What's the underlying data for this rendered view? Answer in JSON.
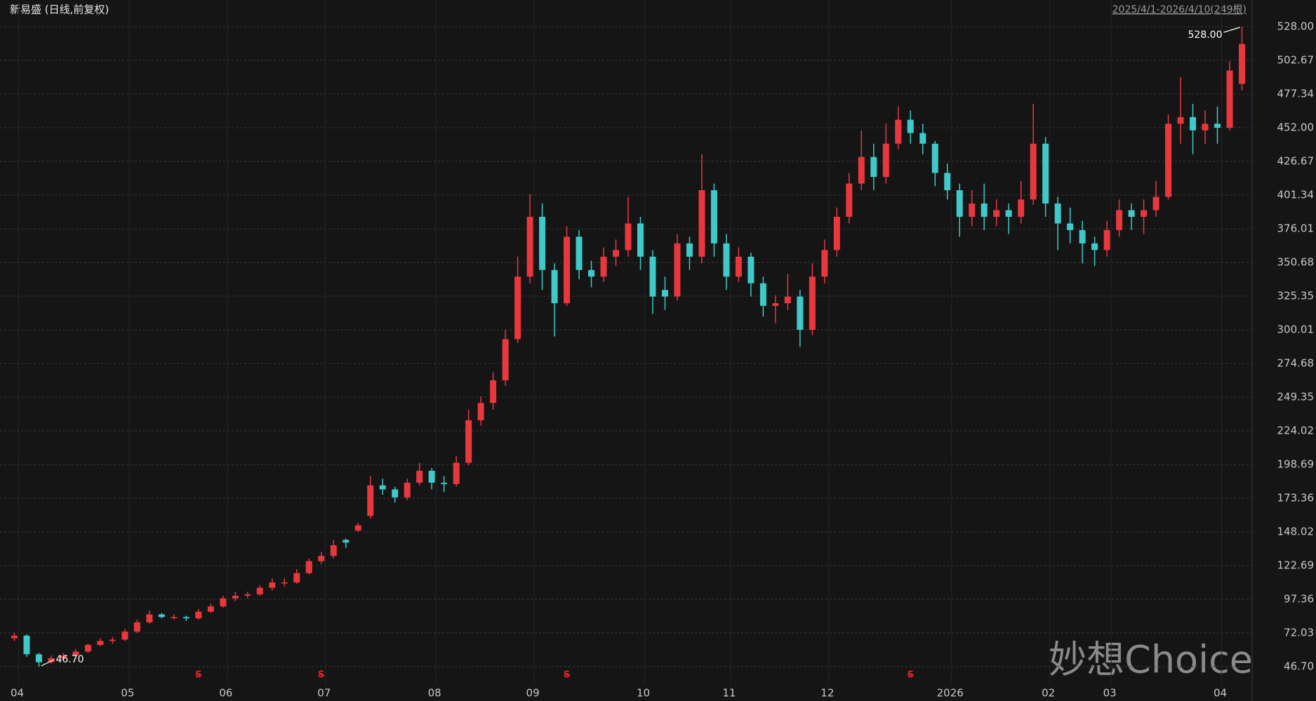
{
  "chart_data": {
    "type": "candlestick",
    "title": "新易盛 (日线,前复权)",
    "range_text": "2025/4/1-2026/4/10(249根)",
    "watermark": "妙想Choice",
    "high_label": "528.00",
    "low_label": "46.70",
    "up_color": "#e8383d",
    "down_color": "#3fc9c9",
    "grid": true,
    "open": [
      68,
      70,
      56,
      50,
      53,
      55,
      58,
      63,
      66,
      67,
      73,
      80,
      86,
      84,
      84,
      83,
      88,
      92,
      98,
      100,
      101,
      106,
      110,
      110,
      117,
      126,
      130,
      142,
      149,
      160,
      183,
      180,
      174,
      185,
      194,
      185,
      184,
      200,
      232,
      245,
      262,
      293,
      340,
      385,
      345,
      320,
      370,
      345,
      340,
      355,
      360,
      380,
      355,
      330,
      325,
      365,
      355,
      405,
      365,
      340,
      355,
      335,
      318,
      320,
      325,
      300,
      340,
      360,
      385,
      410,
      430,
      415,
      440,
      458,
      448,
      440,
      418,
      405,
      385,
      395,
      385,
      390,
      385,
      398,
      440,
      395,
      380,
      375,
      365,
      360,
      375,
      390,
      385,
      390,
      400,
      455,
      460,
      450,
      455,
      452,
      485
    ],
    "high": [
      72,
      71,
      57,
      55,
      57,
      60,
      64,
      68,
      69,
      75,
      82,
      89,
      87,
      86,
      85,
      90,
      94,
      100,
      103,
      103,
      108,
      113,
      113,
      120,
      128,
      133,
      142,
      143,
      155,
      190,
      188,
      182,
      188,
      200,
      196,
      190,
      205,
      240,
      250,
      268,
      300,
      355,
      402,
      395,
      350,
      378,
      375,
      352,
      362,
      368,
      400,
      385,
      360,
      340,
      372,
      370,
      432,
      410,
      372,
      362,
      358,
      340,
      326,
      342,
      330,
      350,
      368,
      392,
      418,
      450,
      440,
      455,
      468,
      465,
      455,
      442,
      425,
      410,
      405,
      410,
      398,
      395,
      412,
      470,
      445,
      400,
      392,
      382,
      370,
      382,
      398,
      395,
      398,
      412,
      462,
      490,
      470,
      465,
      468,
      502,
      528
    ],
    "low": [
      66,
      54,
      46.7,
      49,
      51,
      54,
      57,
      62,
      64,
      66,
      72,
      79,
      83,
      82,
      81,
      82,
      87,
      91,
      96,
      98,
      100,
      104,
      107,
      109,
      116,
      124,
      128,
      136,
      148,
      158,
      176,
      170,
      172,
      183,
      180,
      178,
      182,
      198,
      228,
      240,
      258,
      290,
      335,
      330,
      295,
      318,
      338,
      332,
      336,
      348,
      355,
      345,
      312,
      315,
      322,
      345,
      350,
      355,
      330,
      336,
      325,
      310,
      305,
      315,
      287,
      296,
      335,
      355,
      380,
      405,
      405,
      410,
      436,
      440,
      432,
      408,
      398,
      370,
      378,
      375,
      378,
      372,
      380,
      394,
      385,
      360,
      365,
      350,
      348,
      355,
      370,
      375,
      372,
      385,
      398,
      440,
      432,
      440,
      440,
      450,
      480
    ],
    "close": [
      70,
      56,
      50,
      53,
      55,
      58,
      63,
      66,
      67,
      73,
      80,
      86,
      84,
      84,
      83,
      88,
      92,
      98,
      100,
      101,
      106,
      110,
      110,
      117,
      126,
      130,
      138,
      140,
      153,
      183,
      180,
      174,
      185,
      194,
      185,
      184,
      200,
      232,
      245,
      262,
      293,
      340,
      385,
      345,
      320,
      370,
      345,
      340,
      355,
      360,
      380,
      355,
      325,
      325,
      365,
      355,
      405,
      365,
      340,
      355,
      335,
      318,
      320,
      325,
      300,
      340,
      360,
      385,
      410,
      430,
      415,
      440,
      458,
      448,
      440,
      418,
      405,
      385,
      395,
      385,
      390,
      385,
      398,
      440,
      395,
      380,
      375,
      365,
      360,
      375,
      390,
      385,
      390,
      400,
      455,
      460,
      450,
      455,
      452,
      495,
      515
    ],
    "xlim": [
      -0.6,
      100.6
    ],
    "ylim": [
      46.7,
      528
    ],
    "xticks": [
      {
        "value": 0,
        "label": "04"
      },
      {
        "value": 9,
        "label": "05"
      },
      {
        "value": 17,
        "label": "06"
      },
      {
        "value": 25,
        "label": "07"
      },
      {
        "value": 34,
        "label": "08"
      },
      {
        "value": 42,
        "label": "09"
      },
      {
        "value": 51,
        "label": "10"
      },
      {
        "value": 58,
        "label": "11"
      },
      {
        "value": 66,
        "label": "12"
      },
      {
        "value": 76,
        "label": "2026"
      },
      {
        "value": 84,
        "label": "02"
      },
      {
        "value": 89,
        "label": "03"
      },
      {
        "value": 98,
        "label": "04"
      }
    ],
    "yticks": [
      {
        "value": 46.7,
        "label": "46.70"
      },
      72.03,
      97.36,
      122.69,
      148.02,
      173.36,
      198.69,
      224.02,
      249.35,
      274.68,
      300.01,
      325.35,
      350.68,
      376.01,
      401.34,
      426.67,
      {
        "value": 452,
        "label": "452.00"
      },
      477.34,
      502.67,
      {
        "value": 528,
        "label": "528.00"
      }
    ],
    "events": [
      {
        "x": 15,
        "label": "S"
      },
      {
        "x": 25,
        "label": "S"
      },
      {
        "x": 45,
        "label": "S"
      },
      {
        "x": 73,
        "label": "S"
      }
    ]
  }
}
